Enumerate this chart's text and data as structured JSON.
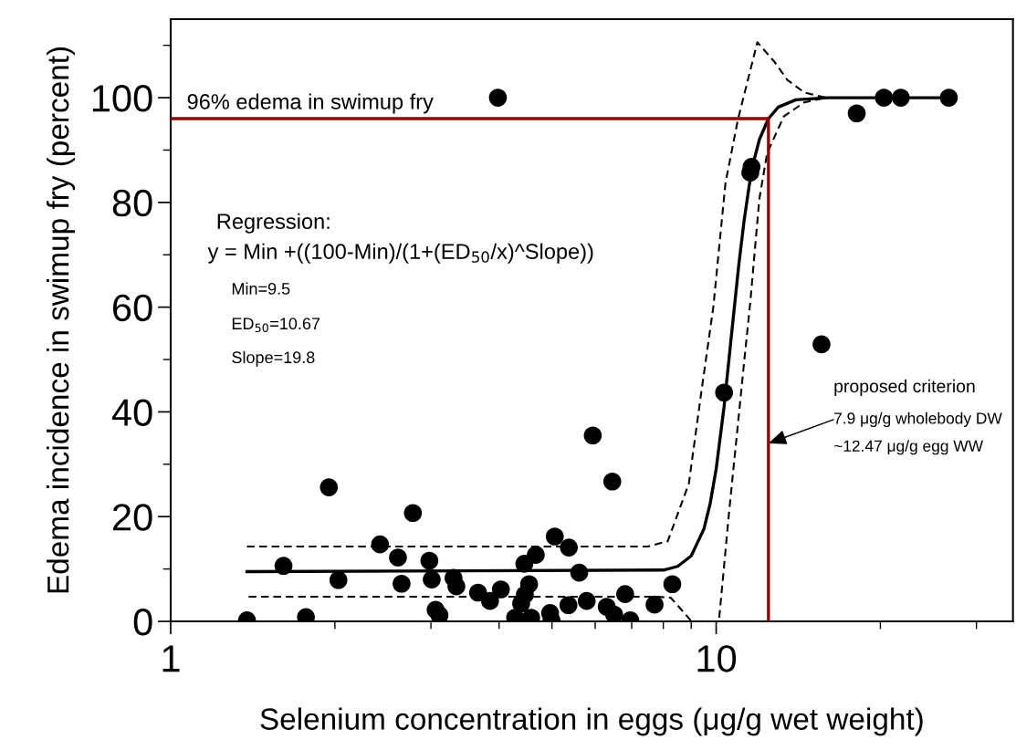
{
  "chart_data": {
    "type": "scatter",
    "xlabel": "Selenium concentration in eggs (μg/g wet weight)",
    "ylabel": "Edema incidence in swimup fry (percent)",
    "log": "x",
    "grid": false,
    "xlim": [
      1,
      35
    ],
    "ylim": [
      0,
      115
    ],
    "xticks": [
      1,
      10,
      {
        "value": 2,
        "label": null
      },
      {
        "value": 3,
        "label": null
      },
      {
        "value": 4,
        "label": null
      },
      {
        "value": 5,
        "label": null
      },
      {
        "value": 6,
        "label": null
      },
      {
        "value": 7,
        "label": null
      },
      {
        "value": 8,
        "label": null
      },
      {
        "value": 9,
        "label": null
      },
      {
        "value": 20,
        "label": null
      },
      {
        "value": 30,
        "label": null
      }
    ],
    "yticks": [
      0,
      20,
      40,
      60,
      80,
      100,
      {
        "value": 10,
        "label": null
      },
      {
        "value": 30,
        "label": null
      },
      {
        "value": 50,
        "label": null
      },
      {
        "value": 70,
        "label": null
      },
      {
        "value": 90,
        "label": null
      },
      {
        "value": 110,
        "label": null
      }
    ],
    "series": [
      {
        "color": "#000000",
        "marker": "circle",
        "x": [
          1.38,
          1.61,
          1.77,
          1.95,
          2.03,
          2.42,
          2.61,
          2.65,
          2.78,
          2.98,
          3.01,
          3.06,
          3.11,
          3.3,
          3.34,
          3.66,
          3.85,
          3.98,
          4.03,
          4.28,
          4.39,
          4.45,
          4.46,
          4.54,
          4.58,
          4.67,
          4.96,
          4.99,
          5.06,
          5.36,
          5.37,
          5.61,
          5.79,
          5.94,
          6.3,
          6.45,
          6.5,
          6.81,
          6.96,
          7.71,
          8.31,
          10.34,
          11.55,
          11.61,
          15.6,
          18.1,
          20.3,
          21.8,
          26.7
        ],
        "values": [
          0.2,
          10.6,
          0.8,
          25.6,
          7.9,
          14.7,
          12.2,
          7.2,
          20.7,
          11.6,
          8.0,
          2.2,
          1.2,
          8.3,
          6.7,
          5.5,
          3.9,
          100,
          6.1,
          0.7,
          3.4,
          11.0,
          5.1,
          7.1,
          0.7,
          12.7,
          1.6,
          0.2,
          16.2,
          3.1,
          14.1,
          9.3,
          3.9,
          35.5,
          2.8,
          26.7,
          1.3,
          5.2,
          0.2,
          3.2,
          7.1,
          43.7,
          85.7,
          86.8,
          52.9,
          97.0,
          100,
          100,
          100
        ]
      },
      {
        "type": "line",
        "color": "#000000",
        "line_style": "solid",
        "x": [
          1.38,
          8,
          8.5,
          9,
          9.5,
          9.75,
          10,
          10.34,
          10.67,
          11,
          11.25,
          11.5,
          11.75,
          12,
          12.47,
          13,
          14,
          16,
          26.7
        ],
        "values": [
          9.5,
          9.8,
          10.5,
          12.5,
          17.7,
          22.5,
          29.1,
          41,
          54.8,
          68,
          76.5,
          83.3,
          88.3,
          92,
          96,
          98.2,
          99.6,
          100,
          100
        ]
      },
      {
        "type": "line",
        "color": "#000000",
        "line_style": "dashed",
        "x": [
          1.38,
          7.5,
          8.15,
          8.91,
          9.39,
          9.88,
          10.4,
          10.96,
          11.9,
          12.8,
          13.5,
          14.5,
          15.9,
          26.7
        ],
        "values": [
          14.3,
          14.3,
          15.3,
          26.3,
          43.7,
          60,
          83.7,
          95.8,
          110.6,
          106.8,
          103.4,
          101,
          100,
          100
        ]
      },
      {
        "type": "line",
        "color": "#000000",
        "line_style": "dashed",
        "x": [
          1.39,
          7.8,
          8.26,
          8.69,
          8.98,
          9.5,
          10.13,
          10.55,
          11.25,
          11.55,
          12.0,
          12.4,
          13.3,
          14.5,
          15.9,
          26.7
        ],
        "values": [
          4.7,
          4.7,
          4.5,
          1.9,
          0.2,
          null,
          0.7,
          20.4,
          49.4,
          61,
          80.7,
          89.4,
          96.4,
          99.1,
          100,
          100
        ]
      },
      {
        "type": "line",
        "color": "#990000",
        "line_style": "solid",
        "x": [
          1,
          12.47,
          12.47
        ],
        "values": [
          96,
          96,
          0
        ]
      }
    ],
    "annotations": [
      {
        "text": "96% edema in swimup fry",
        "x": 1.07,
        "y": 96
      },
      "Regression:",
      "y = Min +((100-Min)/(1+(ED$_{50}$/x)^Slope))",
      "Min=9.5",
      "ED$_{50}$=10.67",
      "Slope=19.8",
      "proposed criterion",
      {
        "text": "7.9 μg/g wholebody DW",
        "x": 12.47,
        "y": 34
      },
      "~12.47 μg/g egg WW"
    ]
  }
}
